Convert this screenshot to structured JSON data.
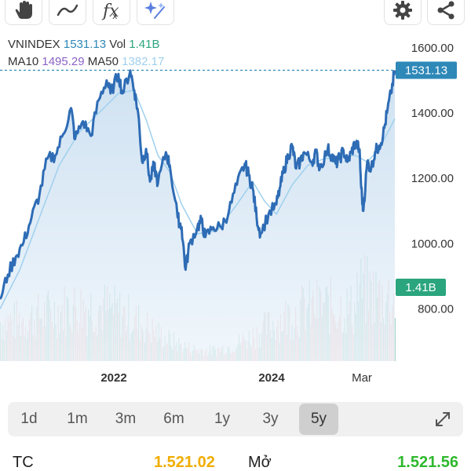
{
  "toolbar": {
    "tools": [
      {
        "name": "hand-tool-icon"
      },
      {
        "name": "line-tool-icon"
      },
      {
        "name": "function-tool-icon",
        "label": "fx"
      },
      {
        "name": "magic-tool-icon"
      }
    ],
    "right": [
      {
        "name": "gear-icon"
      },
      {
        "name": "share-icon"
      }
    ]
  },
  "info": {
    "symbol": "VNINDEX",
    "price": "1531.13",
    "vol_label": "Vol",
    "vol": "1.41B",
    "ma10_label": "MA10",
    "ma10": "1495.29",
    "ma50_label": "MA50",
    "ma50": "1382.17"
  },
  "colors": {
    "price_line": "#2e6cb5",
    "ma_line": "#9fd0ee",
    "area_top": "#c6dcef",
    "area_bottom": "#eef5fb",
    "vol_up": "#4aa890",
    "vol_down": "#e58585",
    "price_badge": "#2e88b8",
    "vol_badge": "#2aa57e",
    "tc_value": "#f0ad00",
    "open_value": "#2eb82e"
  },
  "chart_data": {
    "type": "line",
    "x_tick_labels": [
      "2022",
      "2024",
      "Mar"
    ],
    "y_tick_labels": [
      "1600.00",
      "1400.00",
      "1200.00",
      "1000.00",
      "800.00"
    ],
    "ylim": [
      640,
      1650
    ],
    "last_price_label": "1531.13",
    "last_volume_label": "1.41B",
    "price_series": [
      [
        0.0,
        830
      ],
      [
        0.02,
        905
      ],
      [
        0.04,
        960
      ],
      [
        0.06,
        1005
      ],
      [
        0.08,
        1080
      ],
      [
        0.1,
        1150
      ],
      [
        0.12,
        1260
      ],
      [
        0.14,
        1270
      ],
      [
        0.16,
        1335
      ],
      [
        0.18,
        1415
      ],
      [
        0.19,
        1320
      ],
      [
        0.21,
        1375
      ],
      [
        0.23,
        1330
      ],
      [
        0.25,
        1440
      ],
      [
        0.27,
        1500
      ],
      [
        0.28,
        1460
      ],
      [
        0.3,
        1520
      ],
      [
        0.31,
        1460
      ],
      [
        0.33,
        1530
      ],
      [
        0.34,
        1470
      ],
      [
        0.35,
        1400
      ],
      [
        0.36,
        1250
      ],
      [
        0.37,
        1290
      ],
      [
        0.38,
        1190
      ],
      [
        0.39,
        1240
      ],
      [
        0.4,
        1185
      ],
      [
        0.42,
        1280
      ],
      [
        0.43,
        1240
      ],
      [
        0.45,
        1080
      ],
      [
        0.46,
        1050
      ],
      [
        0.47,
        920
      ],
      [
        0.48,
        1000
      ],
      [
        0.5,
        1050
      ],
      [
        0.51,
        1070
      ],
      [
        0.52,
        1020
      ],
      [
        0.54,
        1050
      ],
      [
        0.56,
        1050
      ],
      [
        0.58,
        1100
      ],
      [
        0.6,
        1180
      ],
      [
        0.62,
        1245
      ],
      [
        0.63,
        1210
      ],
      [
        0.64,
        1170
      ],
      [
        0.65,
        1080
      ],
      [
        0.66,
        1030
      ],
      [
        0.68,
        1090
      ],
      [
        0.7,
        1120
      ],
      [
        0.71,
        1175
      ],
      [
        0.72,
        1230
      ],
      [
        0.73,
        1270
      ],
      [
        0.74,
        1300
      ],
      [
        0.75,
        1230
      ],
      [
        0.76,
        1250
      ],
      [
        0.77,
        1280
      ],
      [
        0.79,
        1250
      ],
      [
        0.8,
        1280
      ],
      [
        0.81,
        1230
      ],
      [
        0.83,
        1290
      ],
      [
        0.84,
        1270
      ],
      [
        0.85,
        1245
      ],
      [
        0.86,
        1260
      ],
      [
        0.87,
        1285
      ],
      [
        0.88,
        1250
      ],
      [
        0.89,
        1280
      ],
      [
        0.9,
        1310
      ],
      [
        0.91,
        1290
      ],
      [
        0.915,
        1170
      ],
      [
        0.92,
        1100
      ],
      [
        0.93,
        1250
      ],
      [
        0.94,
        1230
      ],
      [
        0.95,
        1280
      ],
      [
        0.96,
        1300
      ],
      [
        0.97,
        1330
      ],
      [
        0.98,
        1400
      ],
      [
        0.99,
        1460
      ],
      [
        1.0,
        1531
      ]
    ],
    "ma_series": [
      [
        0.0,
        800
      ],
      [
        0.05,
        920
      ],
      [
        0.1,
        1080
      ],
      [
        0.15,
        1240
      ],
      [
        0.2,
        1340
      ],
      [
        0.25,
        1400
      ],
      [
        0.3,
        1460
      ],
      [
        0.34,
        1470
      ],
      [
        0.37,
        1380
      ],
      [
        0.4,
        1270
      ],
      [
        0.43,
        1220
      ],
      [
        0.46,
        1120
      ],
      [
        0.5,
        1030
      ],
      [
        0.55,
        1040
      ],
      [
        0.6,
        1120
      ],
      [
        0.64,
        1190
      ],
      [
        0.67,
        1130
      ],
      [
        0.7,
        1090
      ],
      [
        0.74,
        1180
      ],
      [
        0.78,
        1240
      ],
      [
        0.82,
        1260
      ],
      [
        0.86,
        1265
      ],
      [
        0.9,
        1270
      ],
      [
        0.93,
        1250
      ],
      [
        0.96,
        1290
      ],
      [
        1.0,
        1382
      ]
    ]
  },
  "ranges": [
    {
      "label": "1d",
      "active": false
    },
    {
      "label": "1m",
      "active": false
    },
    {
      "label": "3m",
      "active": false
    },
    {
      "label": "6m",
      "active": false
    },
    {
      "label": "1y",
      "active": false
    },
    {
      "label": "3y",
      "active": false
    },
    {
      "label": "5y",
      "active": true
    }
  ],
  "bottom": {
    "tc_label": "TC",
    "tc_value": "1.521.02",
    "open_label": "Mở",
    "open_value": "1.521.56"
  }
}
